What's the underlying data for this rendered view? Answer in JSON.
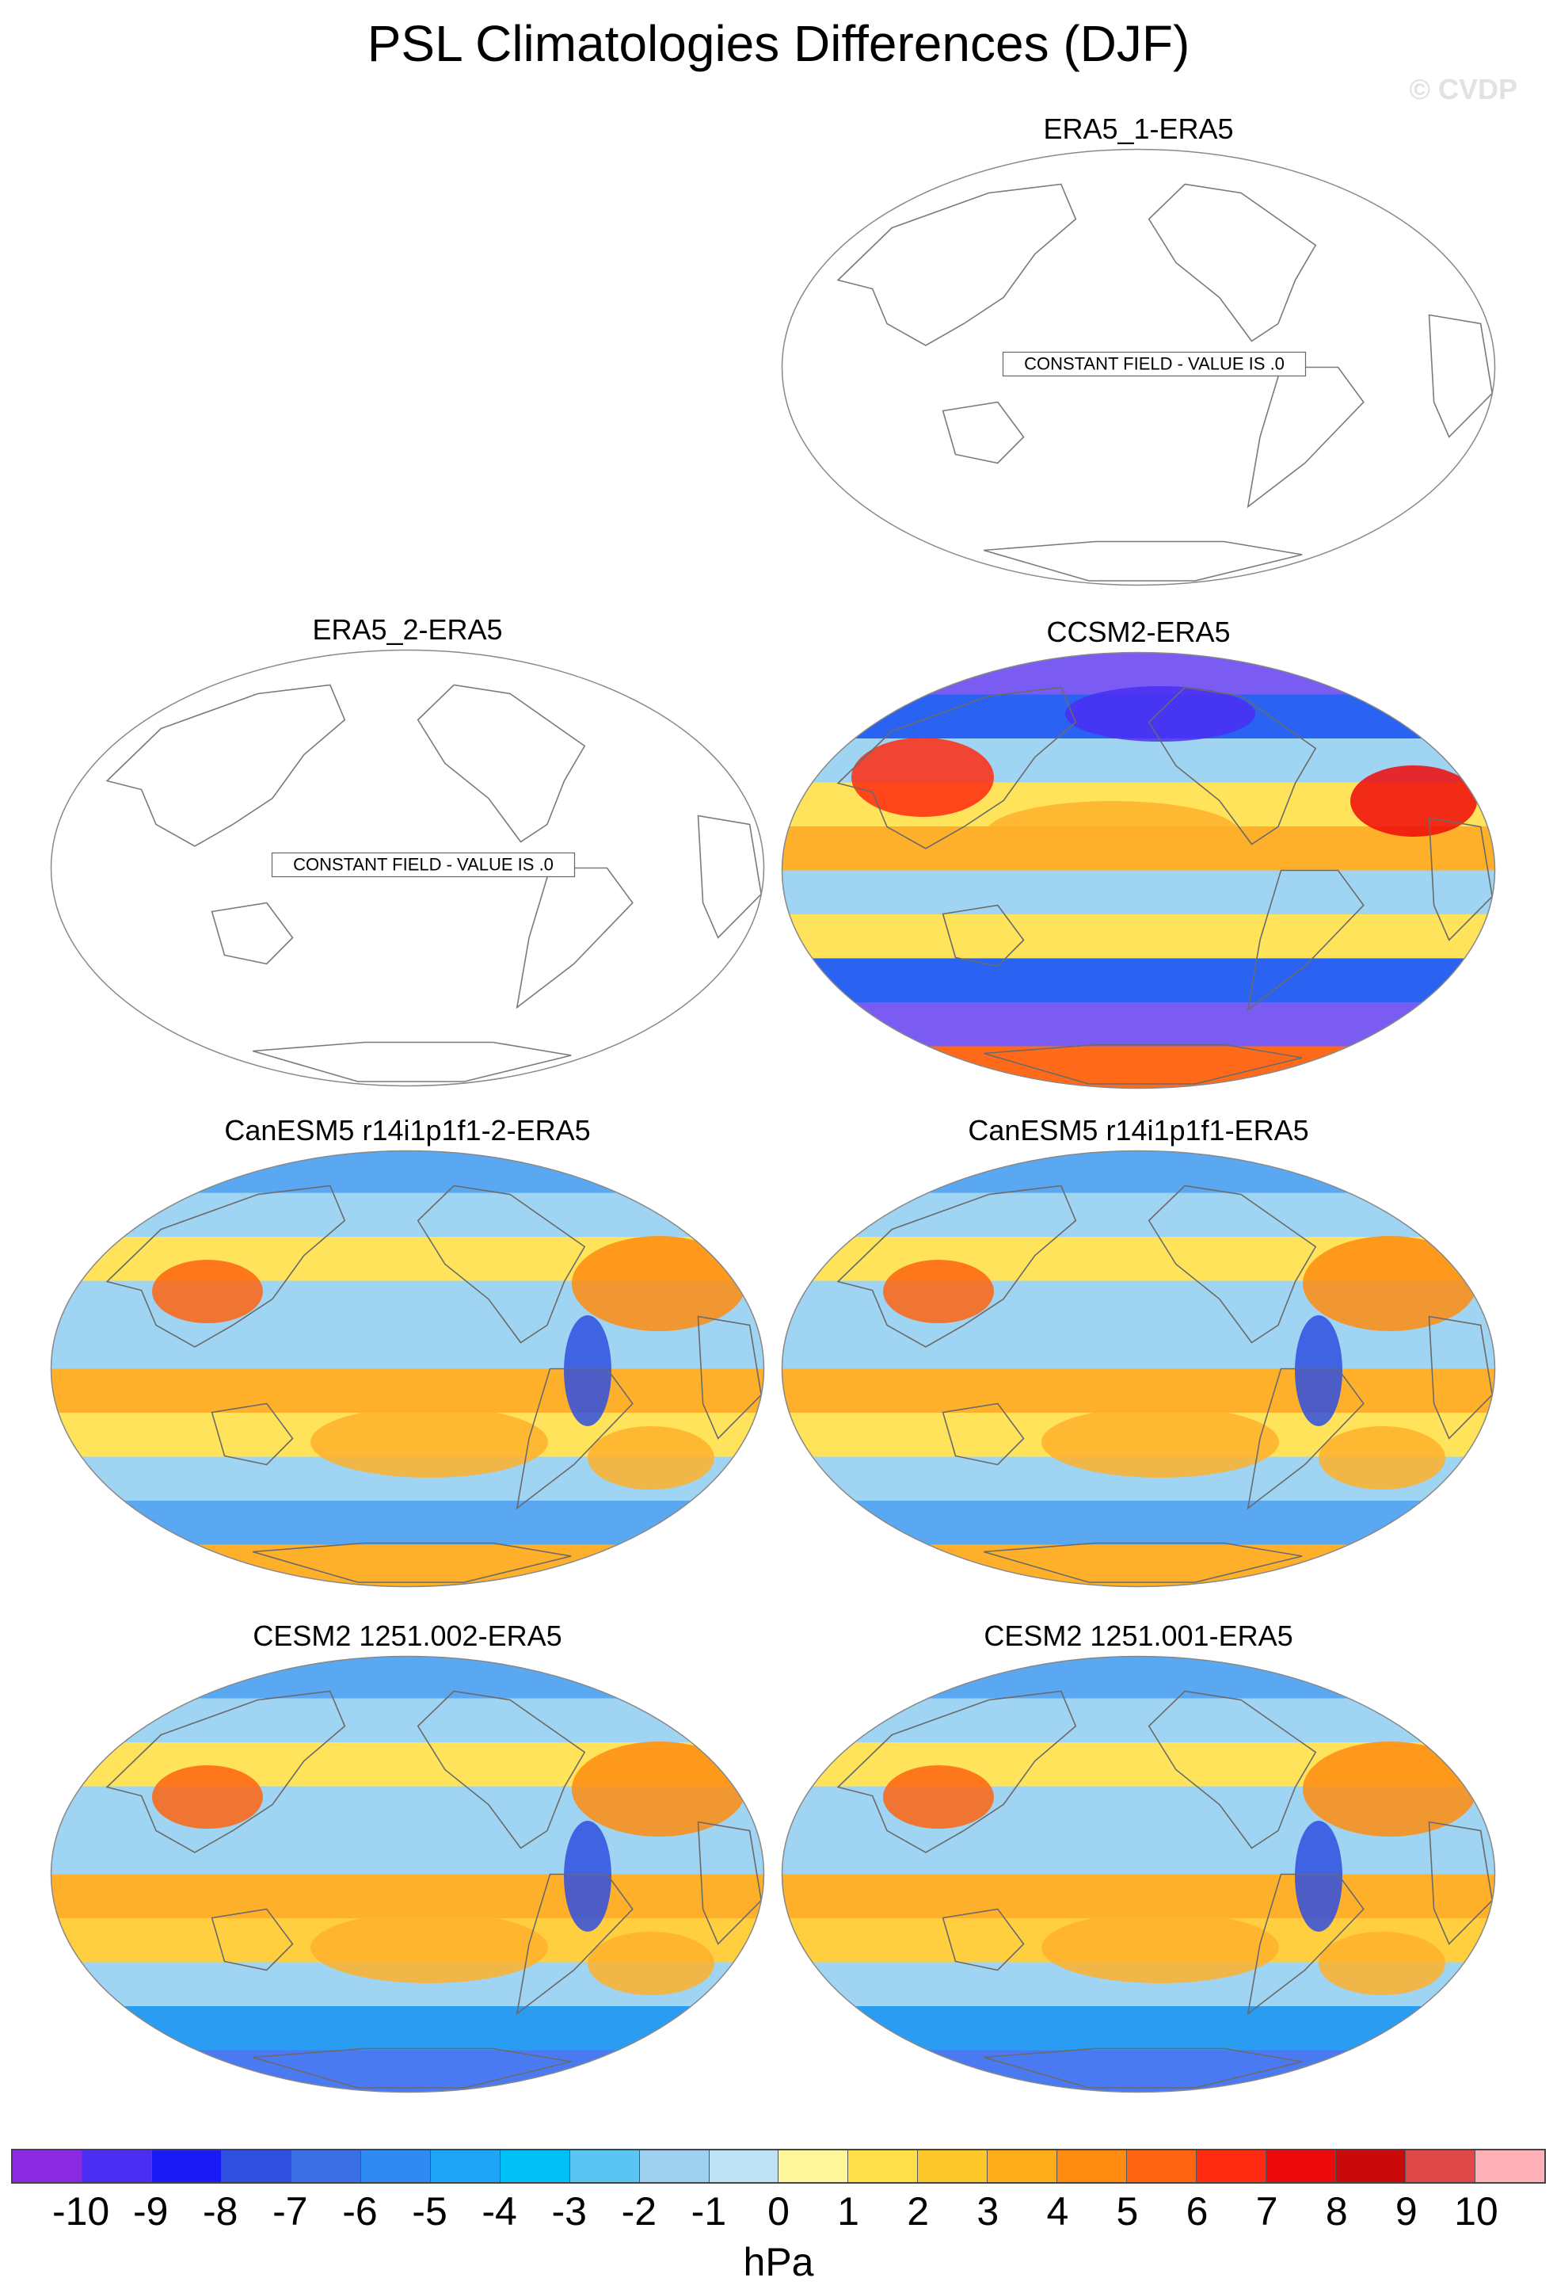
{
  "title": "PSL Climatologies Differences (DJF)",
  "watermark": "© CVDP",
  "units": "hPa",
  "constant_label": "CONSTANT FIELD - VALUE IS .0",
  "panels": [
    {
      "id": "p1",
      "title": "ERA5_1-ERA5",
      "constant": true
    },
    {
      "id": "p2",
      "title": "ERA5_2-ERA5",
      "constant": true
    },
    {
      "id": "p3",
      "title": "CCSM2-ERA5",
      "constant": false,
      "bands": [
        "#7a5cf2",
        "#2a62f2",
        "#9fd4f2",
        "#ffe35a",
        "#ffb02a",
        "#9fd4f2",
        "#ffe35a",
        "#2a62f2",
        "#7a5cf2",
        "#ff6a1a"
      ]
    },
    {
      "id": "p4",
      "title": "CanESM5 r14i1p1f1-2-ERA5",
      "constant": false,
      "bands": [
        "#5aa8f2",
        "#9fd4f2",
        "#ffe35a",
        "#9fd4f2",
        "#9fd4f2",
        "#ffb02a",
        "#ffe35a",
        "#9fd4f2",
        "#5aa8f2",
        "#ffb02a"
      ]
    },
    {
      "id": "p5",
      "title": "CanESM5 r14i1p1f1-ERA5",
      "constant": false,
      "bands": [
        "#5aa8f2",
        "#9fd4f2",
        "#ffe35a",
        "#9fd4f2",
        "#9fd4f2",
        "#ffb02a",
        "#ffe35a",
        "#9fd4f2",
        "#5aa8f2",
        "#ffb02a"
      ]
    },
    {
      "id": "p6",
      "title": "CESM2 1251.002-ERA5",
      "constant": false,
      "bands": [
        "#5aa8f2",
        "#9fd4f2",
        "#ffe35a",
        "#9fd4f2",
        "#9fd4f2",
        "#ffb02a",
        "#ffcf40",
        "#9fd4f2",
        "#2a9cf2",
        "#4a7af2"
      ]
    },
    {
      "id": "p7",
      "title": "CESM2 1251.001-ERA5",
      "constant": false,
      "bands": [
        "#5aa8f2",
        "#9fd4f2",
        "#ffe35a",
        "#9fd4f2",
        "#9fd4f2",
        "#ffb02a",
        "#ffcf40",
        "#9fd4f2",
        "#2a9cf2",
        "#4a7af2"
      ]
    }
  ],
  "colorbar": {
    "labels": [
      "-10",
      "-9",
      "-8",
      "-7",
      "-6",
      "-5",
      "-4",
      "-3",
      "-2",
      "-1",
      "0",
      "1",
      "2",
      "3",
      "4",
      "5",
      "6",
      "7",
      "8",
      "9",
      "10"
    ],
    "colors": [
      "#8a2be2",
      "#4b2ef2",
      "#1a1af5",
      "#2f4fe0",
      "#3a6fe6",
      "#2f8af2",
      "#1ea5f5",
      "#00c0f5",
      "#5ac4f2",
      "#9fd0ef",
      "#bfe2f5",
      "#fff59a",
      "#ffe04a",
      "#ffc82a",
      "#ffae1a",
      "#ff8c10",
      "#ff6410",
      "#ff2a10",
      "#ee0a0a",
      "#c80a0a",
      "#e04848",
      "#ffb0b8"
    ]
  }
}
